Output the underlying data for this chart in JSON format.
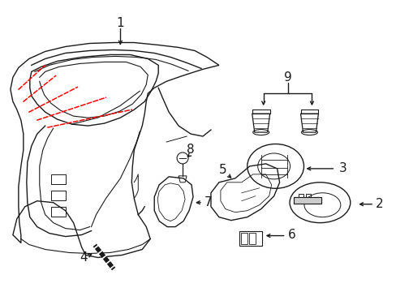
{
  "bg_color": "#ffffff",
  "line_color": "#1a1a1a",
  "red_color": "#ff0000",
  "lw": 1.0,
  "figsize": [
    4.89,
    3.6
  ],
  "dpi": 100
}
